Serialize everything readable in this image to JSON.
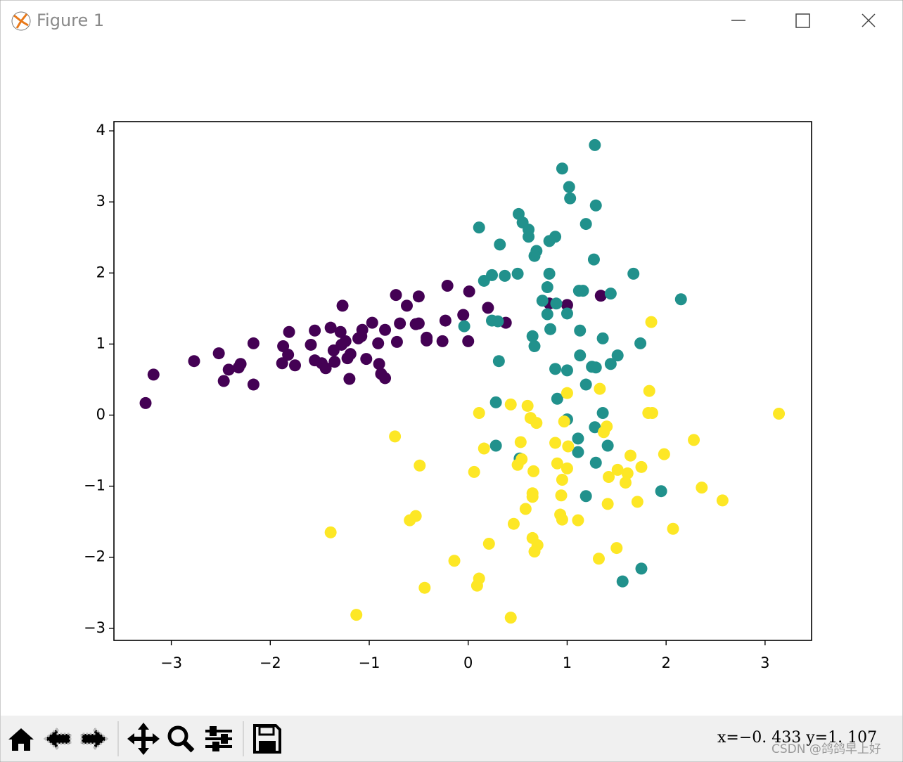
{
  "window": {
    "title": "Figure 1"
  },
  "status": {
    "coords": "x=−0. 433  y=1. 107",
    "watermark": "CSDN @鸽鸽早上好"
  },
  "chart_data": {
    "type": "scatter",
    "xlim": [
      -3.58,
      3.47
    ],
    "ylim": [
      -3.17,
      4.13
    ],
    "xticks": [
      {
        "value": -3,
        "label": "−3"
      },
      {
        "value": -2,
        "label": "−2"
      },
      {
        "value": -1,
        "label": "−1"
      },
      0,
      1,
      2,
      3
    ],
    "yticks": [
      {
        "value": -3,
        "label": "−3"
      },
      {
        "value": -2,
        "label": "−2"
      },
      {
        "value": -1,
        "label": "−1"
      },
      0,
      1,
      2,
      3,
      4
    ],
    "grid": false,
    "series": [
      {
        "color": "#440154",
        "x": [
          -3.26,
          -3.18,
          -2.77,
          -2.52,
          -2.47,
          -2.42,
          -2.32,
          -2.3,
          -2.17,
          -2.17,
          -1.87,
          -1.88,
          -1.82,
          -1.81,
          -1.75,
          -1.59,
          -1.55,
          -1.55,
          -1.48,
          -1.44,
          -1.39,
          -1.36,
          -1.35,
          -1.29,
          -1.27,
          -1.28,
          -1.24,
          -1.22,
          -1.2,
          -1.19,
          -1.11,
          -1.07,
          -1.08,
          -1.03,
          -0.97,
          -0.91,
          -0.9,
          -0.88,
          -0.84,
          -0.84,
          -0.73,
          -0.72,
          -0.69,
          -0.62,
          -0.53,
          -0.5,
          -0.5,
          -0.42,
          -0.42,
          -0.26,
          -0.23,
          -0.21,
          -0.05,
          0.0,
          0.01,
          0.2,
          0.38,
          0.82,
          1.0,
          1.34
        ],
        "values": [
          0.17,
          0.57,
          0.76,
          0.87,
          0.48,
          0.64,
          0.67,
          0.72,
          1.01,
          0.43,
          0.97,
          0.73,
          0.85,
          1.17,
          0.7,
          0.99,
          1.19,
          0.77,
          0.73,
          0.66,
          1.23,
          0.91,
          0.75,
          1.17,
          1.54,
          0.99,
          1.04,
          0.8,
          0.51,
          0.86,
          1.08,
          1.2,
          1.11,
          0.79,
          1.3,
          1.01,
          0.72,
          0.58,
          0.52,
          1.2,
          1.69,
          1.03,
          1.29,
          1.54,
          1.28,
          1.29,
          1.67,
          1.09,
          1.05,
          1.04,
          1.33,
          1.82,
          1.41,
          1.04,
          1.74,
          1.51,
          1.3,
          1.57,
          1.55,
          1.68
        ]
      },
      {
        "color": "#21918c",
        "x": [
          1.28,
          0.95,
          1.02,
          1.03,
          1.29,
          0.51,
          0.55,
          0.61,
          0.61,
          0.11,
          0.32,
          0.88,
          0.82,
          1.19,
          0.69,
          0.67,
          1.27,
          0.5,
          0.24,
          0.37,
          0.16,
          0.82,
          1.67,
          0.8,
          1.12,
          1.16,
          1.44,
          2.15,
          0.75,
          0.89,
          0.8,
          1.0,
          -0.04,
          0.24,
          0.3,
          0.83,
          1.13,
          0.65,
          0.67,
          1.36,
          1.74,
          1.13,
          1.51,
          0.31,
          1.44,
          0.88,
          1.0,
          1.25,
          1.29,
          1.19,
          0.9,
          0.28,
          1.36,
          1.0,
          1.28,
          1.11,
          0.28,
          1.41,
          1.11,
          0.52,
          1.29,
          1.95,
          1.19,
          1.75,
          1.56
        ],
        "values": [
          3.8,
          3.47,
          3.21,
          3.05,
          2.95,
          2.83,
          2.71,
          2.61,
          2.51,
          2.64,
          2.4,
          2.51,
          2.45,
          2.69,
          2.31,
          2.24,
          2.19,
          1.99,
          1.97,
          1.96,
          1.89,
          1.99,
          1.99,
          1.8,
          1.75,
          1.75,
          1.71,
          1.63,
          1.61,
          1.57,
          1.42,
          1.43,
          1.25,
          1.33,
          1.32,
          1.21,
          1.19,
          1.11,
          0.97,
          1.08,
          1.01,
          0.84,
          0.84,
          0.76,
          0.72,
          0.65,
          0.63,
          0.68,
          0.67,
          0.43,
          0.23,
          0.18,
          0.03,
          -0.06,
          -0.17,
          -0.33,
          -0.43,
          -0.43,
          -0.52,
          -0.61,
          -0.67,
          -1.07,
          -1.14,
          -2.16,
          -2.34
        ]
      },
      {
        "color": "#fde725",
        "x": [
          3.14,
          1.85,
          1.83,
          1.33,
          1.0,
          1.86,
          1.82,
          0.11,
          0.43,
          0.6,
          0.63,
          0.69,
          0.97,
          1.4,
          1.37,
          -0.74,
          0.53,
          0.16,
          0.88,
          1.01,
          2.28,
          1.64,
          1.98,
          -0.49,
          0.5,
          0.54,
          0.66,
          0.9,
          1.0,
          0.06,
          1.51,
          1.42,
          1.61,
          1.75,
          1.59,
          0.95,
          2.36,
          0.65,
          0.65,
          0.94,
          2.57,
          1.71,
          1.41,
          0.58,
          -0.53,
          -0.59,
          0.93,
          0.95,
          1.11,
          0.46,
          2.07,
          -1.39,
          0.65,
          0.7,
          0.67,
          0.21,
          1.5,
          1.32,
          -0.14,
          0.11,
          0.09,
          -0.44,
          -1.13,
          0.43
        ],
        "values": [
          0.02,
          1.31,
          0.34,
          0.37,
          0.31,
          0.03,
          0.03,
          0.03,
          0.15,
          0.13,
          -0.04,
          -0.11,
          -0.09,
          -0.16,
          -0.24,
          -0.3,
          -0.38,
          -0.47,
          -0.39,
          -0.44,
          -0.35,
          -0.57,
          -0.55,
          -0.71,
          -0.7,
          -0.62,
          -0.79,
          -0.68,
          -0.75,
          -0.8,
          -0.77,
          -0.87,
          -0.82,
          -0.73,
          -0.95,
          -0.91,
          -1.02,
          -1.1,
          -1.15,
          -1.13,
          -1.2,
          -1.22,
          -1.25,
          -1.32,
          -1.42,
          -1.48,
          -1.4,
          -1.47,
          -1.48,
          -1.53,
          -1.6,
          -1.65,
          -1.73,
          -1.83,
          -1.92,
          -1.81,
          -1.87,
          -2.02,
          -2.05,
          -2.3,
          -2.4,
          -2.43,
          -2.81,
          -2.85
        ]
      }
    ]
  }
}
